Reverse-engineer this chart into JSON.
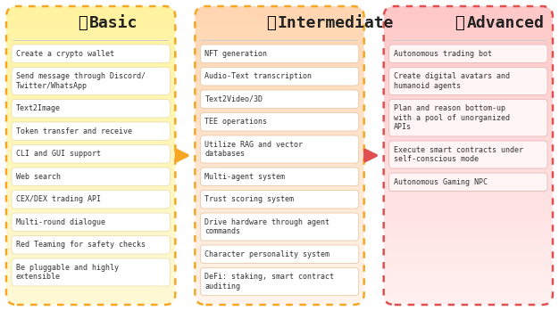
{
  "background_color": "#ffffff",
  "columns": [
    {
      "title": "Basic",
      "medal": "🥉",
      "border_color": "#f5a623",
      "bg_color_top": "#fff9d6",
      "bg_color_bot": "#fff3a0",
      "item_bg": "#ffffff",
      "item_border": "#e8e0b0",
      "items": [
        "Create a crypto wallet",
        "Send message through Discord/\nTwitter/WhatsApp",
        "Text2Image",
        "Token transfer and receive",
        "CLI and GUI support",
        "Web search",
        "CEX/DEX trading API",
        "Multi-round dialogue",
        "Red Teaming for safety checks",
        "Be pluggable and highly\nextensible"
      ]
    },
    {
      "title": "Intermediate",
      "medal": "🥈",
      "border_color": "#f5a623",
      "bg_color_top": "#fff4ec",
      "bg_color_bot": "#ffd6b0",
      "item_bg": "#ffffff",
      "item_border": "#e8c8a8",
      "items": [
        "NFT generation",
        "Audio-Text transcription",
        "Text2Video/3D",
        "TEE operations",
        "Utilize RAG and vector\ndatabases",
        "Multi-agent system",
        "Trust scoring system",
        "Drive hardware through agent\ncommands",
        "Character personality system",
        "DeFi: staking, smart contract\nauditing"
      ]
    },
    {
      "title": "Advanced",
      "medal": "🥇",
      "border_color": "#e05050",
      "bg_color_top": "#fff0f0",
      "bg_color_bot": "#ffc8c8",
      "item_bg": "#fff5f5",
      "item_border": "#e8b8b8",
      "items": [
        "Autonomous trading bot",
        "Create digital avatars and\nhumanoid agents",
        "Plan and reason bottom-up\nwith a pool of unorganized\nAPIs",
        "Execute smart contracts under\nself-conscious mode",
        "Autonomous Gaming NPC"
      ]
    }
  ],
  "arrow_color": "#f5a623",
  "arrow_color2": "#e05050"
}
